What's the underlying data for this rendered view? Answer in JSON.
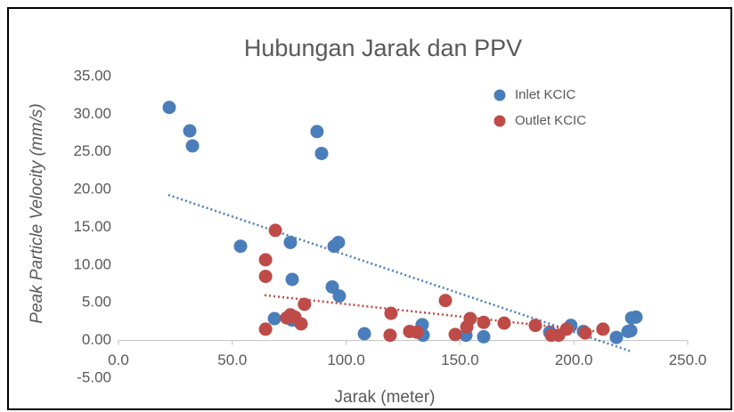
{
  "chart_data": {
    "type": "scatter",
    "title": "Hubungan Jarak dan PPV",
    "x_label": "Jarak (meter)",
    "y_label": "Peak Particle Velocity (mm/s)",
    "xlim": [
      0,
      250
    ],
    "ylim": [
      -5,
      35
    ],
    "xticks": [
      {
        "value": 0,
        "label": "0.0"
      },
      {
        "value": 50,
        "label": "50.0"
      },
      {
        "value": 100,
        "label": "100.0"
      },
      {
        "value": 150,
        "label": "150.0"
      },
      {
        "value": 200,
        "label": "200.0"
      },
      {
        "value": 250,
        "label": "250.0"
      }
    ],
    "yticks": [
      {
        "value": -5,
        "label": "-5.00"
      },
      {
        "value": 0,
        "label": "0.00"
      },
      {
        "value": 5,
        "label": "5.00"
      },
      {
        "value": 10,
        "label": "10.00"
      },
      {
        "value": 15,
        "label": "15.00"
      },
      {
        "value": 20,
        "label": "20.00"
      },
      {
        "value": 25,
        "label": "25.00"
      },
      {
        "value": 30,
        "label": "30.00"
      },
      {
        "value": 35,
        "label": "35.00"
      }
    ],
    "legend": "top-right",
    "grid": false,
    "series": [
      {
        "name": "Inlet KCIC",
        "color": "#4a7ebb",
        "x": [
          22.3,
          31.3,
          32.5,
          53.6,
          68.5,
          75.5,
          76.3,
          76.3,
          87.2,
          89.2,
          93.9,
          94.7,
          96.6,
          97.0,
          108.0,
          133.4,
          133.8,
          152.6,
          160.4,
          189.4,
          198.7,
          204.2,
          218.7,
          223.8,
          225.0,
          225.4,
          227.3
        ],
        "values": [
          30.9,
          27.8,
          25.8,
          12.5,
          2.9,
          13.0,
          8.1,
          2.7,
          27.7,
          24.8,
          7.1,
          12.5,
          13.0,
          5.9,
          0.9,
          2.1,
          0.7,
          0.7,
          0.5,
          1.1,
          2.0,
          1.2,
          0.4,
          1.2,
          1.3,
          3.0,
          3.1
        ],
        "trend": {
          "x": [
            21.9,
            225.7
          ],
          "values": [
            19.3,
            -1.5
          ]
        }
      },
      {
        "name": "Outlet KCIC",
        "color": "#be4b48",
        "x": [
          64.6,
          64.6,
          64.6,
          68.9,
          73.9,
          75.5,
          77.5,
          80.2,
          81.7,
          119.7,
          119.3,
          127.9,
          131.1,
          143.6,
          147.9,
          153.0,
          154.5,
          160.4,
          169.4,
          183.1,
          190.1,
          193.3,
          196.8,
          205.0,
          212.8
        ],
        "values": [
          1.5,
          10.7,
          8.5,
          14.6,
          3.0,
          3.4,
          3.1,
          2.2,
          4.8,
          3.6,
          0.7,
          1.2,
          1.1,
          5.3,
          0.8,
          1.8,
          2.9,
          2.4,
          2.3,
          2.0,
          0.7,
          0.7,
          1.5,
          1.0,
          1.5
        ],
        "trend": {
          "x": [
            64.2,
            213.2
          ],
          "values": [
            6.0,
            1.1
          ]
        }
      }
    ]
  }
}
